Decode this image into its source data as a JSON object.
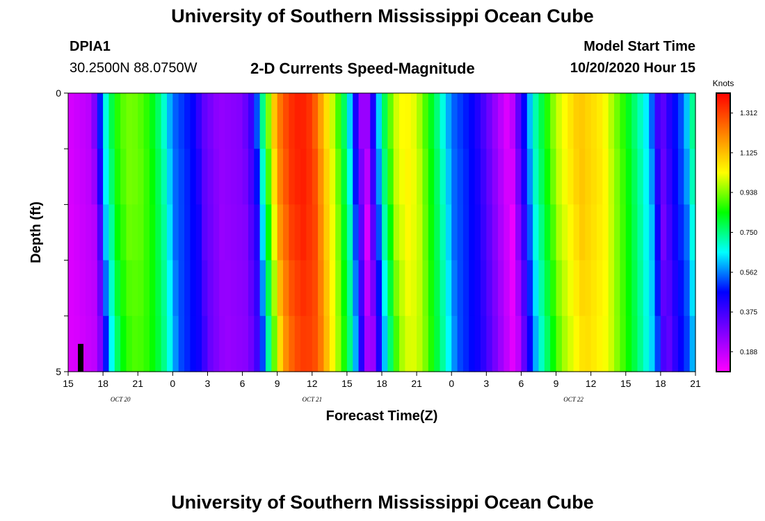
{
  "header": {
    "title_top": "University of Southern Mississippi Ocean Cube",
    "title_bottom": "University of Southern Mississippi Ocean Cube",
    "station": "DPIA1",
    "coords": "30.2500N 88.0750W",
    "subtitle": "2-D Currents Speed-Magnitude",
    "model_label": "Model Start Time",
    "model_time": "10/20/2020 Hour 15"
  },
  "chart_data": {
    "type": "heatmap",
    "title": "2-D Currents Speed-Magnitude",
    "xlabel": "Forecast Time(Z)",
    "ylabel": "Depth (ft)",
    "x_ticks": [
      "15",
      "18",
      "21",
      "0",
      "3",
      "6",
      "9",
      "12",
      "15",
      "18",
      "21",
      "0",
      "3",
      "6",
      "9",
      "12",
      "15",
      "18",
      "21"
    ],
    "date_labels": [
      {
        "text": "OCT 20",
        "after_tick": 1.5
      },
      {
        "text": "OCT 21",
        "after_tick": 7
      },
      {
        "text": "OCT 22",
        "after_tick": 14.5
      }
    ],
    "y_ticks": [
      "0",
      "5"
    ],
    "y_range": [
      0,
      5
    ],
    "x_range_hours": [
      0,
      54
    ],
    "colorbar": {
      "label": "Knots",
      "min": 0.094,
      "max": 1.406,
      "ticks": [
        "1.312",
        "1.125",
        "0.938",
        "0.750",
        "0.562",
        "0.375",
        "0.188"
      ],
      "tick_values": [
        1.312,
        1.125,
        0.938,
        0.75,
        0.562,
        0.375,
        0.188
      ],
      "colors": [
        "#ff00ff",
        "#8000ff",
        "#0000ff",
        "#00ffff",
        "#00ff00",
        "#ffff00",
        "#ff8000",
        "#ff0000"
      ]
    },
    "speed_profile": [
      {
        "hour": 0,
        "speed": 0.15
      },
      {
        "hour": 2,
        "speed": 0.2
      },
      {
        "hour": 2.5,
        "speed": 0.36
      },
      {
        "hour": 3,
        "speed": 0.62
      },
      {
        "hour": 4,
        "speed": 0.85
      },
      {
        "hour": 5,
        "speed": 0.93
      },
      {
        "hour": 6,
        "speed": 0.92
      },
      {
        "hour": 7,
        "speed": 0.86
      },
      {
        "hour": 8,
        "speed": 0.74
      },
      {
        "hour": 9,
        "speed": 0.55
      },
      {
        "hour": 11,
        "speed": 0.45
      },
      {
        "hour": 11.5,
        "speed": 0.34
      },
      {
        "hour": 13,
        "speed": 0.25
      },
      {
        "hour": 15,
        "speed": 0.28
      },
      {
        "hour": 16,
        "speed": 0.42
      },
      {
        "hour": 17,
        "speed": 0.85
      },
      {
        "hour": 18,
        "speed": 1.2
      },
      {
        "hour": 19,
        "speed": 1.33
      },
      {
        "hour": 20,
        "speed": 1.37
      },
      {
        "hour": 21,
        "speed": 1.32
      },
      {
        "hour": 22,
        "speed": 1.12
      },
      {
        "hour": 23,
        "speed": 0.95
      },
      {
        "hour": 24,
        "speed": 0.72
      },
      {
        "hour": 25.5,
        "speed": 0.15
      },
      {
        "hour": 27,
        "speed": 0.72
      },
      {
        "hour": 28,
        "speed": 0.98
      },
      {
        "hour": 29,
        "speed": 1.05
      },
      {
        "hour": 30,
        "speed": 1.0
      },
      {
        "hour": 32,
        "speed": 0.72
      },
      {
        "hour": 33,
        "speed": 0.55
      },
      {
        "hour": 35,
        "speed": 0.45
      },
      {
        "hour": 37,
        "speed": 0.22
      },
      {
        "hour": 38,
        "speed": 0.12
      },
      {
        "hour": 40,
        "speed": 0.68
      },
      {
        "hour": 42,
        "speed": 0.98
      },
      {
        "hour": 44,
        "speed": 1.12
      },
      {
        "hour": 46,
        "speed": 1.05
      },
      {
        "hour": 48,
        "speed": 0.85
      },
      {
        "hour": 50,
        "speed": 0.62
      },
      {
        "hour": 51,
        "speed": 0.3
      },
      {
        "hour": 52,
        "speed": 0.45
      },
      {
        "hour": 53,
        "speed": 0.55
      },
      {
        "hour": 54,
        "speed": 0.8
      }
    ]
  }
}
